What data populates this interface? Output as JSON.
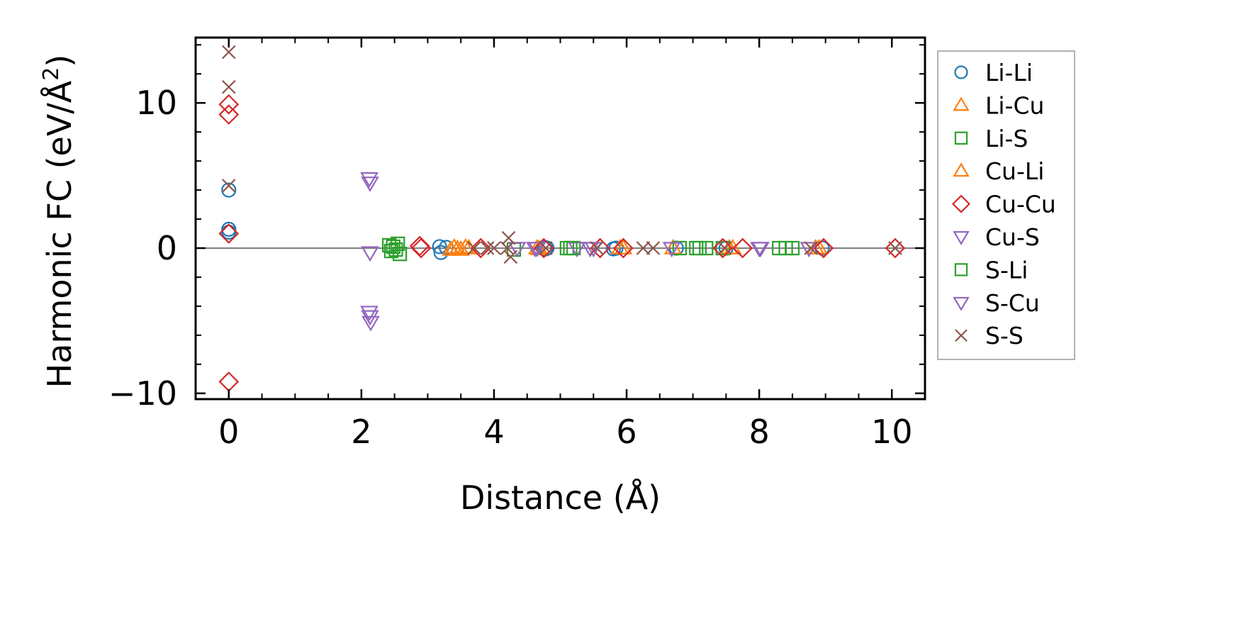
{
  "chart_data": {
    "type": "scatter",
    "title": "",
    "xlabel": "Distance (Å)",
    "ylabel_main": "Harmonic FC (eV/Å",
    "ylabel_sup": "2",
    "ylabel_close": ")",
    "xlim": [
      -0.5,
      10.5
    ],
    "ylim": [
      -10.4,
      14.5
    ],
    "xticks": [
      0,
      2,
      4,
      6,
      8,
      10
    ],
    "xtick_labels": [
      "0",
      "2",
      "4",
      "6",
      "8",
      "10"
    ],
    "yticks": [
      -10,
      0,
      10
    ],
    "ytick_labels": [
      "−10",
      "0",
      "10"
    ],
    "zero_line": true,
    "grid": false,
    "legend_position": "outside-right",
    "series": [
      {
        "name": "Li-Li",
        "marker": "circle",
        "color": "#1f77b4",
        "x": [
          0,
          0,
          0,
          3.18,
          3.2,
          3.28,
          4.76,
          4.78,
          4.8,
          5.8,
          5.84,
          6.75,
          7.5,
          8.95
        ],
        "y": [
          4.0,
          1.3,
          1.1,
          0.1,
          -0.3,
          0.05,
          0.05,
          -0.05,
          0.0,
          -0.05,
          0.0,
          0.0,
          0.0,
          0.0
        ]
      },
      {
        "name": "Li-Cu",
        "marker": "triangle-up",
        "color": "#ff7f0e",
        "x": [
          3.35,
          3.4,
          3.5,
          3.57,
          4.65,
          5.95,
          6.7,
          7.55,
          8.9
        ],
        "y": [
          -0.1,
          0.05,
          -0.1,
          0.05,
          0.0,
          0.0,
          0.0,
          0.0,
          0.0
        ]
      },
      {
        "name": "Li-S",
        "marker": "square",
        "color": "#2ca02c",
        "x": [
          2.42,
          2.45,
          2.55,
          2.58,
          4.3,
          5.1,
          5.2,
          6.8,
          7.05,
          7.2,
          7.45,
          8.3,
          8.5
        ],
        "y": [
          0.2,
          -0.2,
          0.3,
          -0.4,
          -0.1,
          0.0,
          0.0,
          0.0,
          0.0,
          0.0,
          0.0,
          0.0,
          0.0
        ]
      },
      {
        "name": "Cu-Li",
        "marker": "triangle-up",
        "color": "#ff7f0e",
        "x": [
          3.45,
          3.62,
          4.68,
          5.9,
          7.6,
          8.85
        ],
        "y": [
          -0.05,
          0.0,
          -0.05,
          0.0,
          0.0,
          0.0
        ]
      },
      {
        "name": "Cu-Cu",
        "marker": "diamond",
        "color": "#d62728",
        "x": [
          0,
          0,
          0,
          0,
          2.88,
          2.9,
          3.8,
          4.75,
          5.6,
          5.95,
          7.45,
          7.75,
          8.97,
          10.05
        ],
        "y": [
          9.9,
          9.2,
          1.0,
          -9.2,
          0.15,
          0.0,
          0.0,
          0.0,
          0.0,
          0.0,
          0.0,
          0.0,
          0.0,
          0.0
        ]
      },
      {
        "name": "Cu-S",
        "marker": "triangle-down",
        "color": "#9467bd",
        "x": [
          2.12,
          2.13,
          2.13,
          2.12,
          4.35,
          4.65,
          5.25,
          5.5,
          6.68,
          8.0,
          8.75
        ],
        "y": [
          4.8,
          4.5,
          -0.3,
          -4.4,
          0.0,
          0.0,
          0.0,
          0.0,
          0.0,
          0.0,
          0.0
        ]
      },
      {
        "name": "S-Li",
        "marker": "square",
        "color": "#2ca02c",
        "x": [
          2.48,
          2.52,
          5.15,
          7.1,
          8.4
        ],
        "y": [
          0.1,
          -0.1,
          0.0,
          0.0,
          0.0
        ]
      },
      {
        "name": "S-Cu",
        "marker": "triangle-down",
        "color": "#9467bd",
        "x": [
          2.13,
          2.14,
          4.62,
          5.45,
          8.02
        ],
        "y": [
          -4.7,
          -5.1,
          0.0,
          0.0,
          0.0
        ]
      },
      {
        "name": "S-S",
        "marker": "x",
        "color": "#8c564b",
        "x": [
          0,
          0,
          0,
          3.7,
          3.9,
          4.0,
          4.2,
          4.22,
          4.25,
          4.78,
          5.55,
          6.25,
          6.4,
          7.48,
          8.78,
          10.05
        ],
        "y": [
          13.5,
          11.1,
          4.3,
          0.0,
          0.0,
          0.0,
          0.0,
          0.7,
          -0.6,
          0.0,
          0.0,
          0.0,
          0.0,
          0.0,
          0.0,
          0.0
        ]
      }
    ]
  }
}
